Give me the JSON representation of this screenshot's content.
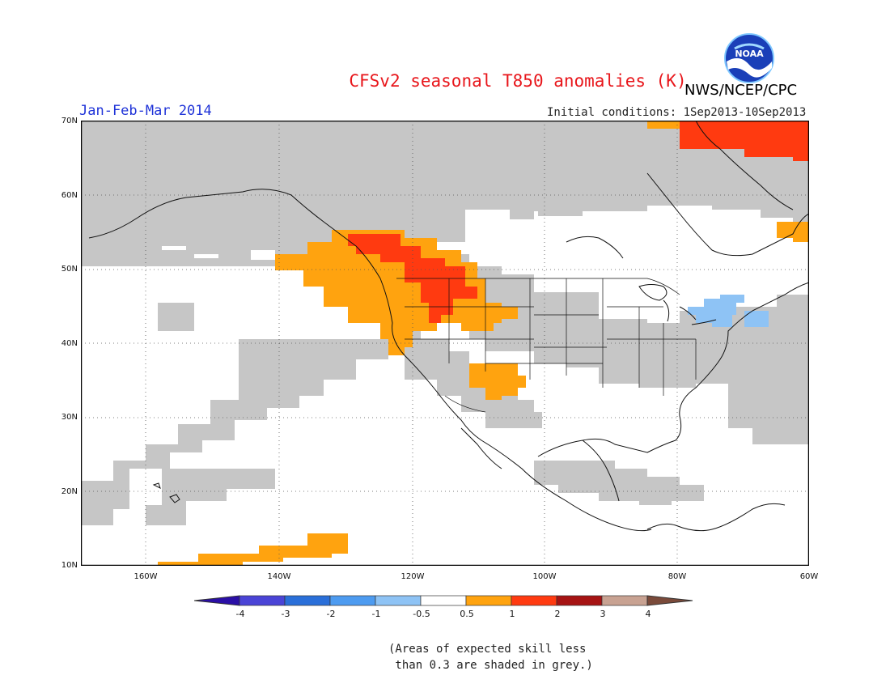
{
  "title": "CFSv2 seasonal T850 anomalies (K)",
  "period": "Jan-Feb-Mar 2014",
  "initial_conditions": "Initial conditions: 1Sep2013-10Sep2013",
  "agency": "NWS/NCEP/CPC",
  "logo_text": "NOAA",
  "lat_labels": [
    "70N",
    "60N",
    "50N",
    "40N",
    "30N",
    "20N",
    "10N"
  ],
  "lon_labels": [
    "160W",
    "140W",
    "120W",
    "100W",
    "80W",
    "60W"
  ],
  "colorbar": {
    "labels": [
      "-4",
      "-3",
      "-2",
      "-1",
      "-0.5",
      "0.5",
      "1",
      "2",
      "3",
      "4"
    ],
    "colors": [
      "#2a0fa6",
      "#4a44d6",
      "#2a6fd9",
      "#4d9bf0",
      "#8ec3f5",
      "#ffffff",
      "#ffa30f",
      "#ff3a10",
      "#a61313",
      "#c8a292",
      "#7a4a3a"
    ]
  },
  "note_line1": "(Areas of expected skill less",
  "note_line2": " than 0.3 are shaded in grey.)",
  "colors": {
    "land_grey": "#c6c6c6",
    "ocean": "#ffffff",
    "warm_05_1": "#ffa30f",
    "warm_1_2": "#ff3a10",
    "cool_neg1_neg05": "#8ec3f5"
  }
}
